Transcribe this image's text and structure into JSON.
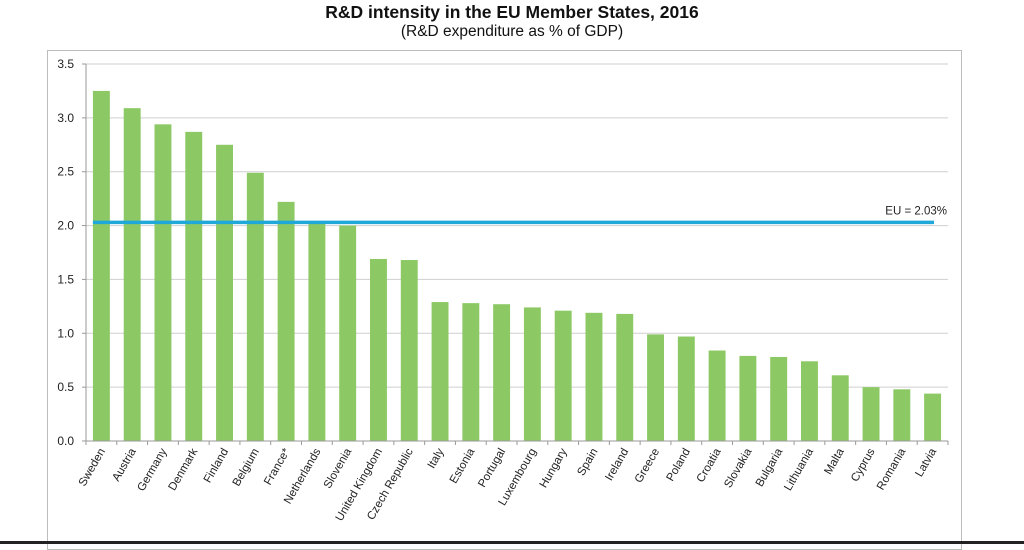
{
  "chart_data": {
    "type": "bar",
    "title": "R&D intensity in the EU Member States, 2016",
    "subtitle": "(R&D expenditure as % of GDP)",
    "xlabel": "",
    "ylabel": "",
    "ylim": [
      0,
      3.5
    ],
    "yticks": [
      "0.0",
      "0.5",
      "1.0",
      "1.5",
      "2.0",
      "2.5",
      "3.0",
      "3.5"
    ],
    "grid": true,
    "categories": [
      "Sweden",
      "Austria",
      "Germany",
      "Denmark",
      "Finland",
      "Belgium",
      "France*",
      "Netherlands",
      "Slovenia",
      "United Kingdom",
      "Czech Republic",
      "Italy",
      "Estonia",
      "Portugal",
      "Luxembourg",
      "Hungary",
      "Spain",
      "Ireland",
      "Greece",
      "Poland",
      "Croatia",
      "Slovakia",
      "Bulgaria",
      "Lithuania",
      "Malta",
      "Cyprus",
      "Romania",
      "Latvia"
    ],
    "values": [
      3.25,
      3.09,
      2.94,
      2.87,
      2.75,
      2.49,
      2.22,
      2.03,
      2.0,
      1.69,
      1.68,
      1.29,
      1.28,
      1.27,
      1.24,
      1.21,
      1.19,
      1.18,
      0.99,
      0.97,
      0.84,
      0.79,
      0.78,
      0.74,
      0.61,
      0.5,
      0.48,
      0.44
    ],
    "bar_color": "#8cc964",
    "reference_line": {
      "label": "EU = 2.03%",
      "value": 2.03,
      "color": "#1fa8d8"
    }
  }
}
